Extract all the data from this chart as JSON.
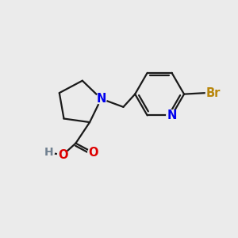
{
  "bg_color": "#ebebeb",
  "bond_color": "#1a1a1a",
  "N_color": "#0000ee",
  "O_color": "#dd0000",
  "Br_color": "#b8860b",
  "H_color": "#708090",
  "line_width": 1.6,
  "font_size": 10.5,
  "fig_size": [
    3.0,
    3.0
  ],
  "dpi": 100,
  "xlim": [
    0,
    10
  ],
  "ylim": [
    0,
    10
  ]
}
